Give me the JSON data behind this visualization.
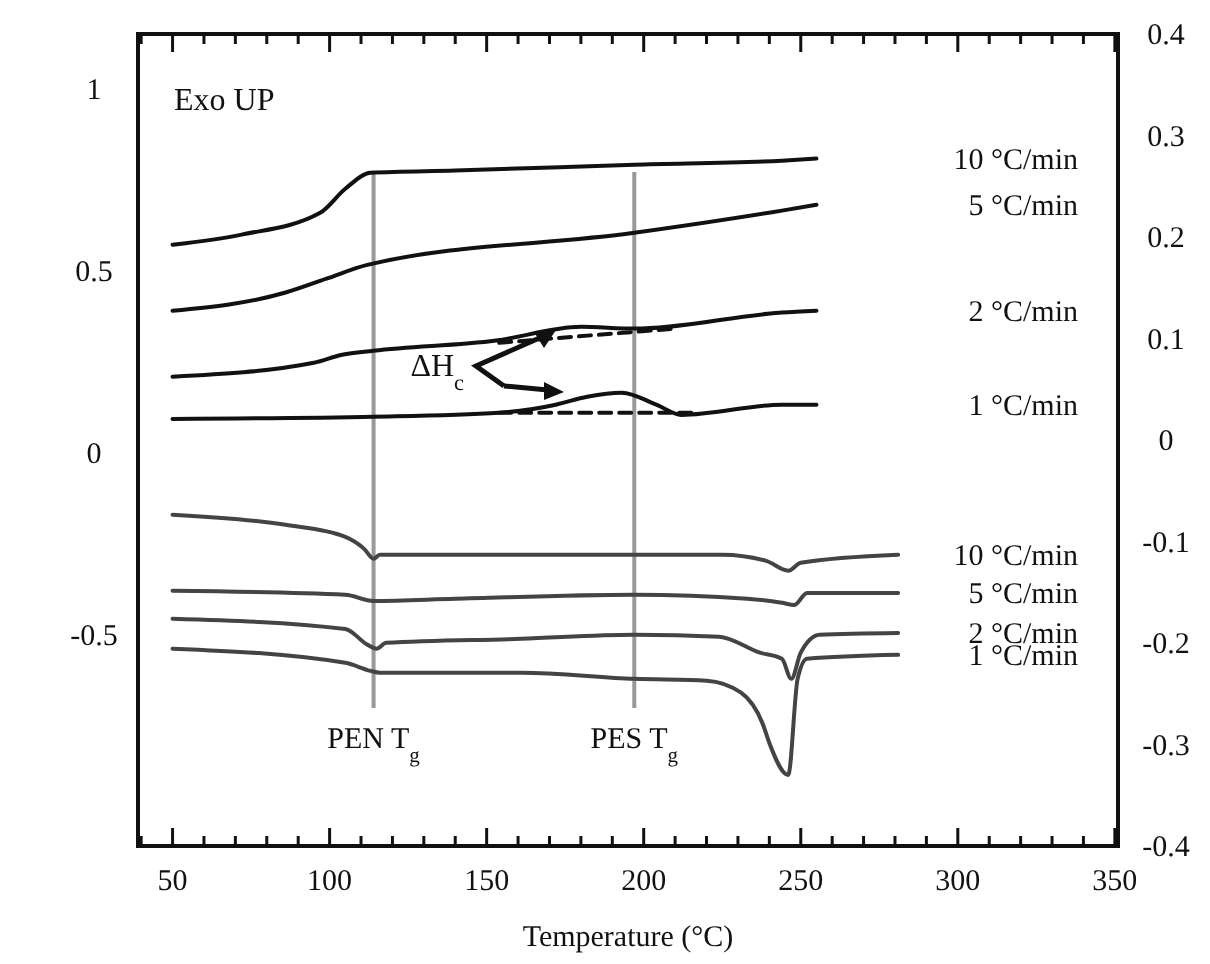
{
  "chart_data": {
    "type": "line",
    "xlabel": "Temperature (°C)",
    "xlim": [
      39,
      351
    ],
    "xticks": [
      {
        "value": 40,
        "label": null
      },
      50,
      {
        "value": 60,
        "label": null
      },
      {
        "value": 70,
        "label": null
      },
      {
        "value": 80,
        "label": null
      },
      {
        "value": 90,
        "label": null
      },
      100,
      {
        "value": 110,
        "label": null
      },
      {
        "value": 120,
        "label": null
      },
      {
        "value": 130,
        "label": null
      },
      {
        "value": 140,
        "label": null
      },
      150,
      {
        "value": 160,
        "label": null
      },
      {
        "value": 170,
        "label": null
      },
      {
        "value": 180,
        "label": null
      },
      {
        "value": 190,
        "label": null
      },
      200,
      {
        "value": 210,
        "label": null
      },
      {
        "value": 220,
        "label": null
      },
      {
        "value": 230,
        "label": null
      },
      {
        "value": 240,
        "label": null
      },
      250,
      {
        "value": 260,
        "label": null
      },
      {
        "value": 270,
        "label": null
      },
      {
        "value": 280,
        "label": null
      },
      {
        "value": 290,
        "label": null
      },
      300,
      {
        "value": 310,
        "label": null
      },
      {
        "value": 320,
        "label": null
      },
      {
        "value": 330,
        "label": null
      },
      {
        "value": 340,
        "label": null
      },
      350
    ],
    "ylim": [
      -1.08,
      1.15
    ],
    "yticks": [
      -0.5,
      0,
      0.5,
      1
    ],
    "y2lim": [
      -0.4,
      0.4
    ],
    "y2ticks": [
      -0.4,
      -0.3,
      -0.2,
      -0.1,
      0,
      0.1,
      0.2,
      0.3,
      0.4
    ],
    "grid": false,
    "marker": "none",
    "line_style": "solid",
    "series": [
      {
        "name": "10 °C/min",
        "color": "#111111",
        "x": [
          50,
          72,
          97,
          105,
          113,
          140,
          197,
          244,
          255
        ],
        "values": [
          0.571,
          0.599,
          0.659,
          0.725,
          0.769,
          0.775,
          0.791,
          0.802,
          0.808
        ]
      },
      {
        "name": "5 °C/min",
        "color": "#111111",
        "x": [
          50,
          86,
          99,
          112,
          197,
          244,
          255
        ],
        "values": [
          0.39,
          0.44,
          0.478,
          0.516,
          0.604,
          0.665,
          0.681
        ]
      },
      {
        "name": "2 °C/min",
        "color": "#111111",
        "x": [
          50,
          95,
          104,
          114,
          153,
          180,
          197,
          244,
          255
        ],
        "values": [
          0.209,
          0.247,
          0.269,
          0.28,
          0.308,
          0.346,
          0.341,
          0.385,
          0.39
        ]
      },
      {
        "name": "1 °C/min",
        "color": "#111111",
        "x": [
          50,
          114,
          154,
          172,
          182,
          193,
          204,
          212,
          244,
          255
        ],
        "values": [
          0.093,
          0.099,
          0.11,
          0.132,
          0.154,
          0.165,
          0.132,
          0.104,
          0.132,
          0.132
        ]
      },
      {
        "color": "#111111",
        "line_style": "dashed",
        "x": [
          154,
          210
        ],
        "values": [
          0.302,
          0.341
        ]
      },
      {
        "color": "#111111",
        "line_style": "dashed",
        "x": [
          154,
          216
        ],
        "values": [
          0.11,
          0.11
        ]
      },
      {
        "name": "10 °C/min",
        "color": "#444444",
        "x": [
          50,
          86,
          105,
          111,
          114,
          116,
          140,
          182,
          225,
          239,
          246,
          250,
          281
        ],
        "values": [
          -0.17,
          -0.198,
          -0.231,
          -0.264,
          -0.291,
          -0.28,
          -0.28,
          -0.28,
          -0.28,
          -0.297,
          -0.324,
          -0.302,
          -0.28
        ]
      },
      {
        "name": "5 °C/min",
        "color": "#444444",
        "x": [
          50,
          105,
          114,
          140,
          197,
          233,
          244,
          248,
          252,
          281
        ],
        "values": [
          -0.379,
          -0.39,
          -0.407,
          -0.401,
          -0.39,
          -0.401,
          -0.412,
          -0.418,
          -0.385,
          -0.385
        ]
      },
      {
        "name": "2 °C/min",
        "color": "#444444",
        "x": [
          50,
          105,
          112,
          115,
          118,
          161,
          197,
          224,
          237,
          244,
          247,
          250,
          256,
          281
        ],
        "values": [
          -0.456,
          -0.484,
          -0.527,
          -0.538,
          -0.522,
          -0.511,
          -0.5,
          -0.505,
          -0.549,
          -0.566,
          -0.621,
          -0.549,
          -0.5,
          -0.495
        ]
      },
      {
        "name": "1 °C/min",
        "color": "#444444",
        "x": [
          50,
          105,
          113,
          116,
          161,
          197,
          220,
          231,
          238,
          240,
          246,
          249,
          252,
          281
        ],
        "values": [
          -0.538,
          -0.577,
          -0.599,
          -0.604,
          -0.604,
          -0.621,
          -0.626,
          -0.659,
          -0.747,
          -0.797,
          -0.885,
          -0.621,
          -0.566,
          -0.555
        ]
      }
    ],
    "ref_lines": [
      {
        "axis": "x",
        "value": 114,
        "label": "PEN T$_{g}$",
        "color": "#999999"
      },
      {
        "axis": "x",
        "value": 197,
        "label": "PES T$_{g}$",
        "color": "#999999"
      }
    ],
    "annotations": [
      "Exo UP",
      "ΔH$_{c}$"
    ]
  }
}
